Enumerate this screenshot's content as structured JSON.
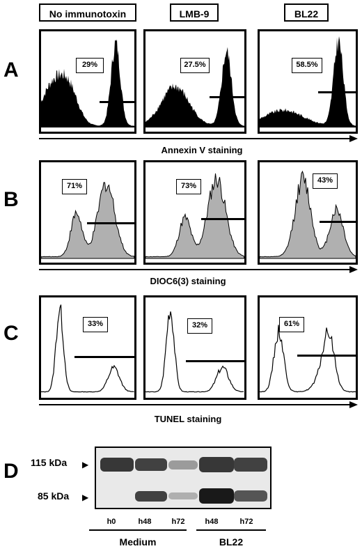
{
  "columns": [
    {
      "label": "No immunotoxin"
    },
    {
      "label": "LMB-9"
    },
    {
      "label": "BL22"
    }
  ],
  "rows": [
    {
      "letter": "A",
      "axis_label": "Annexin V staining",
      "percents": [
        "29%",
        "27.5%",
        "58.5%"
      ]
    },
    {
      "letter": "B",
      "axis_label": "DIOC6(3) staining",
      "percents": [
        "71%",
        "73%",
        "43%"
      ]
    },
    {
      "letter": "C",
      "axis_label": "TUNEL staining",
      "percents": [
        "33%",
        "32%",
        "61%"
      ]
    }
  ],
  "blot": {
    "letter": "D",
    "markers": [
      "115 kDa",
      "85 kDa"
    ],
    "lanes": [
      "h0",
      "h48",
      "h72",
      "h48",
      "h72"
    ],
    "groups": [
      "Medium",
      "BL22"
    ],
    "band_intensity_115": [
      0.85,
      0.8,
      0.35,
      0.85,
      0.8
    ],
    "band_intensity_85": [
      0.0,
      0.8,
      0.25,
      1.0,
      0.7
    ]
  }
}
